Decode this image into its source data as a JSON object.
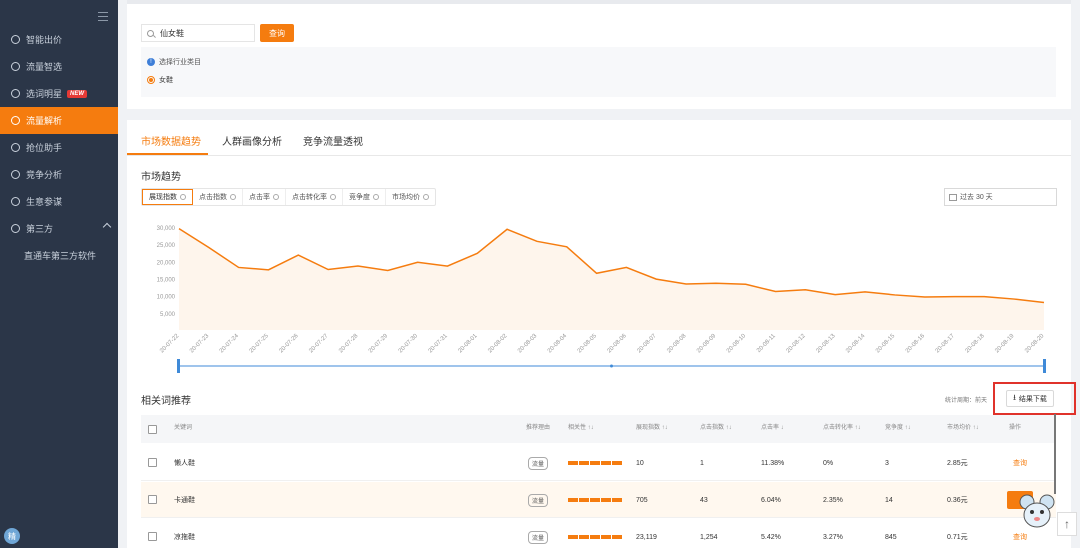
{
  "sidebar": {
    "items": [
      {
        "label": "智能出价",
        "icon": "bid-icon"
      },
      {
        "label": "流量智选",
        "icon": "traffic-icon"
      },
      {
        "label": "选词明星",
        "icon": "keyword-icon",
        "badge": "NEW"
      },
      {
        "label": "流量解析",
        "icon": "analysis-icon",
        "active": true
      },
      {
        "label": "抢位助手",
        "icon": "position-icon"
      },
      {
        "label": "竞争分析",
        "icon": "competition-icon"
      },
      {
        "label": "生意参谋",
        "icon": "business-icon"
      },
      {
        "label": "第三方",
        "icon": "third-party-icon",
        "expanded": true
      }
    ],
    "sub_items": [
      "直通车第三方软件"
    ]
  },
  "search": {
    "value": "仙女鞋",
    "button_label": "查询"
  },
  "category": {
    "prompt": "选择行业类目",
    "option": "女鞋"
  },
  "tabs": [
    "市场数据趋势",
    "人群画像分析",
    "竞争流量透视"
  ],
  "trend": {
    "title": "市场趋势",
    "metrics": [
      "展现指数",
      "点击指数",
      "点击率",
      "点击转化率",
      "竞争度",
      "市场均价"
    ],
    "date_range": "过去 30 天"
  },
  "chart_data": {
    "type": "area",
    "x": [
      "20-07-22",
      "20-07-23",
      "20-07-24",
      "20-07-25",
      "20-07-26",
      "20-07-27",
      "20-07-28",
      "20-07-29",
      "20-07-30",
      "20-07-31",
      "20-08-01",
      "20-08-02",
      "20-08-03",
      "20-08-04",
      "20-08-05",
      "20-08-06",
      "20-08-07",
      "20-08-08",
      "20-08-09",
      "20-08-10",
      "20-08-11",
      "20-08-12",
      "20-08-13",
      "20-08-14",
      "20-08-15",
      "20-08-16",
      "20-08-17",
      "20-08-18",
      "20-08-19",
      "20-08-20"
    ],
    "series": [
      {
        "values": [
          29500,
          24000,
          18200,
          17500,
          21800,
          17600,
          18600,
          17300,
          19700,
          18600,
          22300,
          29300,
          25800,
          24200,
          16500,
          18200,
          14800,
          13400,
          13600,
          13300,
          11200,
          11700,
          10300,
          11100,
          10200,
          9600,
          9700,
          9700,
          9000,
          8000
        ]
      }
    ],
    "yticks": [
      "5,000",
      "10,000",
      "15,000",
      "20,000",
      "25,000",
      "30,000"
    ],
    "ylim": [
      0,
      32000
    ],
    "color": "#f57c0f"
  },
  "related": {
    "title": "相关词推荐",
    "stat_label": "统计周期：前天",
    "download_label": "结果下载",
    "columns": [
      "关键词",
      "推荐理由",
      "相关性",
      "展现指数",
      "点击指数",
      "点击率",
      "点击转化率",
      "竞争度",
      "市场均价",
      "操作"
    ],
    "rows": [
      {
        "keyword": "懒人鞋",
        "reason": "流量",
        "relevance": 5,
        "impression": "10",
        "clicks": "1",
        "ctr": "11.38%",
        "cvr": "0%",
        "competition": "3",
        "price": "2.85元",
        "action": "查询"
      },
      {
        "keyword": "卡通鞋",
        "reason": "流量",
        "relevance": 5,
        "impression": "705",
        "clicks": "43",
        "ctr": "6.04%",
        "cvr": "2.35%",
        "competition": "14",
        "price": "0.36元",
        "action": ""
      },
      {
        "keyword": "凉拖鞋",
        "reason": "流量",
        "relevance": 5,
        "impression": "23,119",
        "clicks": "1,254",
        "ctr": "5.42%",
        "cvr": "3.27%",
        "competition": "845",
        "price": "0.71元",
        "action": "查询"
      }
    ]
  }
}
